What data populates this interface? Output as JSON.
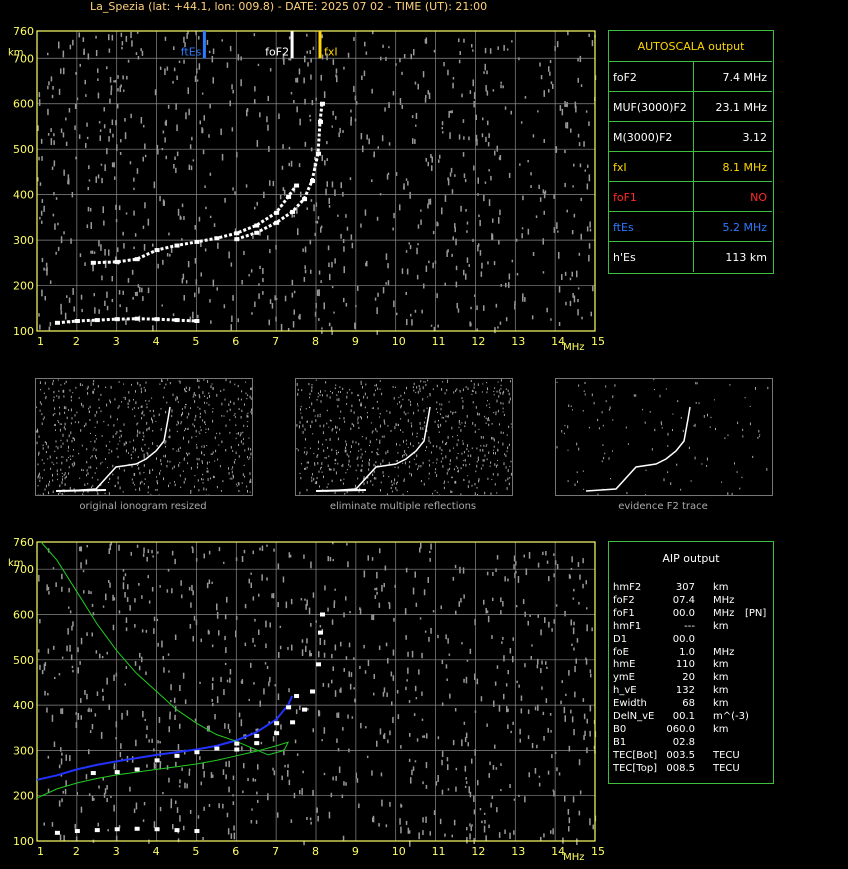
{
  "header": "La_Spezia (lat: +44.1, lon: 009.8) - DATE: 2025 07 02 - TIME (UT): 21:00",
  "colors": {
    "axis": "#ffff66",
    "grid": "#8a8a8a",
    "fte": "#2d7bff",
    "fof2": "#ffffff",
    "fxi": "#ffd700",
    "panel": "#3fbf3f",
    "trace": "#ffffff",
    "blue_profile": "#2233ff",
    "green_model": "#22cc22"
  },
  "chart_data": [
    {
      "type": "scatter",
      "title": "",
      "xlabel": "MHz",
      "ylabel": "km",
      "xlim": [
        1,
        15
      ],
      "ylim": [
        100,
        760
      ],
      "xticks": [
        "1",
        "2",
        "3",
        "4",
        "5",
        "6",
        "7",
        "8",
        "9",
        "10",
        "11",
        "12",
        "13",
        "14",
        "15"
      ],
      "yticks": [
        "100",
        "200",
        "300",
        "400",
        "500",
        "600",
        "700",
        "760"
      ],
      "grid": true,
      "markers": [
        {
          "name": "ftEs",
          "x": 5.2
        },
        {
          "name": "foF2",
          "x": 7.4
        },
        {
          "name": "fxI",
          "x": 8.1
        }
      ],
      "series": [
        {
          "points": [
            [
              1.5,
              118
            ],
            [
              2.0,
              122
            ],
            [
              2.5,
              124
            ],
            [
              3.0,
              126
            ],
            [
              3.5,
              127
            ],
            [
              4.0,
              126
            ],
            [
              4.5,
              124
            ],
            [
              5.0,
              122
            ]
          ]
        },
        {
          "points": [
            [
              2.4,
              250
            ],
            [
              3.0,
              252
            ],
            [
              3.5,
              258
            ],
            [
              4.0,
              278
            ],
            [
              4.5,
              288
            ],
            [
              5.0,
              296
            ],
            [
              5.5,
              304
            ],
            [
              6.0,
              315
            ],
            [
              6.5,
              332
            ],
            [
              7.0,
              360
            ],
            [
              7.3,
              395
            ],
            [
              7.5,
              420
            ]
          ]
        },
        {
          "points": [
            [
              6.0,
              302
            ],
            [
              6.5,
              316
            ],
            [
              7.0,
              338
            ],
            [
              7.4,
              362
            ],
            [
              7.7,
              390
            ],
            [
              7.9,
              430
            ],
            [
              8.05,
              490
            ],
            [
              8.1,
              560
            ],
            [
              8.15,
              600
            ]
          ]
        }
      ]
    },
    {
      "type": "line",
      "title": "",
      "xlabel": "MHz",
      "ylabel": "km",
      "xlim": [
        1,
        15
      ],
      "ylim": [
        100,
        760
      ],
      "xticks": [
        "1",
        "2",
        "3",
        "4",
        "5",
        "6",
        "7",
        "8",
        "9",
        "10",
        "11",
        "12",
        "13",
        "14",
        "15"
      ],
      "yticks": [
        "100",
        "200",
        "300",
        "400",
        "500",
        "600",
        "700",
        "760"
      ],
      "grid": true,
      "series": [
        {
          "points": [
            [
              1.0,
              235
            ],
            [
              1.5,
              245
            ],
            [
              2.0,
              258
            ],
            [
              2.5,
              268
            ],
            [
              3.0,
              276
            ],
            [
              3.5,
              283
            ],
            [
              4.0,
              290
            ],
            [
              4.5,
              296
            ],
            [
              5.0,
              302
            ],
            [
              5.5,
              310
            ],
            [
              6.0,
              322
            ],
            [
              6.5,
              340
            ],
            [
              7.0,
              368
            ],
            [
              7.3,
              400
            ],
            [
              7.4,
              420
            ]
          ]
        },
        {
          "points": [
            [
              1.0,
              195
            ],
            [
              1.5,
              215
            ],
            [
              2.0,
              228
            ],
            [
              2.5,
              238
            ],
            [
              3.0,
              246
            ],
            [
              3.5,
              252
            ],
            [
              4.0,
              258
            ],
            [
              4.5,
              264
            ],
            [
              5.0,
              270
            ],
            [
              5.5,
              278
            ],
            [
              6.0,
              288
            ],
            [
              6.5,
              298
            ],
            [
              7.0,
              310
            ],
            [
              7.3,
              318
            ],
            [
              7.2,
              300
            ],
            [
              6.8,
              290
            ],
            [
              6.0,
              320
            ],
            [
              5.5,
              335
            ],
            [
              5.0,
              360
            ],
            [
              4.5,
              390
            ],
            [
              4.0,
              430
            ],
            [
              3.5,
              470
            ],
            [
              3.0,
              520
            ],
            [
              2.5,
              580
            ],
            [
              2.0,
              650
            ],
            [
              1.5,
              720
            ],
            [
              1.1,
              760
            ]
          ]
        }
      ]
    }
  ],
  "autoscala": {
    "title": "AUTOSCALA output",
    "rows": [
      {
        "label": "foF2",
        "value": "7.4 MHz",
        "color": "#ffffff"
      },
      {
        "label": "MUF(3000)F2",
        "value": "23.1 MHz",
        "color": "#ffffff"
      },
      {
        "label": "M(3000)F2",
        "value": "3.12",
        "color": "#ffffff"
      },
      {
        "label": "fxI",
        "value": "8.1 MHz",
        "color": "#ffd700"
      },
      {
        "label": "foF1",
        "value": "NO",
        "color": "#ff2a2a"
      },
      {
        "label": "ftEs",
        "value": "5.2 MHz",
        "color": "#2d7bff"
      },
      {
        "label": "h'Es",
        "value": "113     km",
        "color": "#ffffff"
      }
    ]
  },
  "aip": {
    "title": "AIP output",
    "rows": [
      [
        "hmF2",
        "307",
        "km",
        ""
      ],
      [
        "foF2",
        "07.4",
        "MHz",
        ""
      ],
      [
        "foF1",
        "00.0",
        "MHz",
        "[PN]"
      ],
      [
        "hmF1",
        "---",
        "km",
        ""
      ],
      [
        "D1",
        "00.0",
        "",
        ""
      ],
      [
        "foE",
        "1.0",
        "MHz",
        ""
      ],
      [
        "hmE",
        "110",
        "km",
        ""
      ],
      [
        "ymE",
        "20",
        "km",
        ""
      ],
      [
        "h_vE",
        "132",
        "km",
        ""
      ],
      [
        "Ewidth",
        "68",
        "km",
        ""
      ],
      [
        "DelN_vE",
        "00.1",
        "m^(-3)",
        ""
      ],
      [
        "B0",
        "060.0",
        "km",
        ""
      ],
      [
        "B1",
        "02.8",
        "",
        ""
      ],
      [
        "TEC[Bot]",
        "003.5",
        "TECU",
        ""
      ],
      [
        "TEC[Top]",
        "008.5",
        "TECU",
        ""
      ]
    ]
  },
  "thumbnails": [
    {
      "caption": "original ionogram resized"
    },
    {
      "caption": "eliminate multiple reflections"
    },
    {
      "caption": "evidence F2 trace"
    }
  ]
}
